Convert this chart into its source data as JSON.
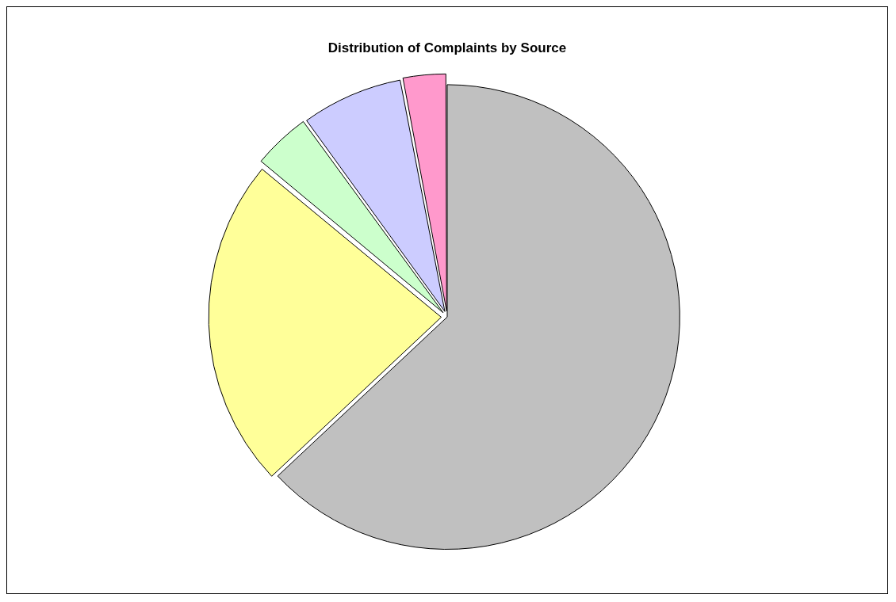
{
  "chart_data": {
    "type": "pie",
    "title": "Distribution of Complaints by Source",
    "categories": [
      null,
      null,
      null,
      null,
      null
    ],
    "values": [
      63,
      23,
      4,
      7,
      3
    ],
    "colors": [
      "#c0c0c0",
      "#ffff99",
      "#ccffcc",
      "#ccccff",
      "#ff99cc"
    ],
    "legend": false
  }
}
